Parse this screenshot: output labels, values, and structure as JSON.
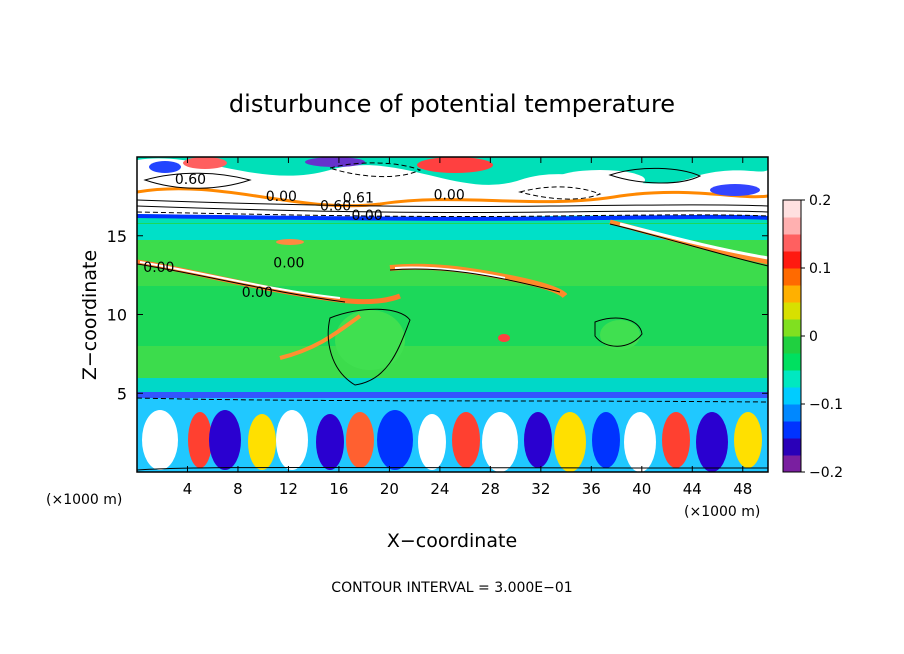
{
  "chart_data": {
    "type": "heatmap",
    "title": "disturbunce of potential temperature",
    "xlabel": "X−coordinate",
    "ylabel": "Z−coordinate",
    "x_unit": "(×1000 m)",
    "x_unit_right": "(×1000 m)",
    "xlim": [
      0,
      50
    ],
    "ylim": [
      0,
      20
    ],
    "x_ticks": [
      4,
      8,
      12,
      16,
      20,
      24,
      28,
      32,
      36,
      40,
      44,
      48
    ],
    "y_ticks": [
      5,
      10,
      15
    ],
    "colorbar": {
      "range": [
        -0.2,
        0.2
      ],
      "ticks": [
        {
          "value": 0.2,
          "label": "0.2"
        },
        {
          "value": 0.1,
          "label": "0.1"
        },
        {
          "value": 0.0,
          "label": "0"
        },
        {
          "value": -0.1,
          "label": "−0.1"
        },
        {
          "value": -0.2,
          "label": "−0.2"
        }
      ],
      "colors": [
        "#7a1fa0",
        "#2a00b8",
        "#0033ff",
        "#0088ff",
        "#00ccff",
        "#00e8c0",
        "#00e060",
        "#20d040",
        "#80e020",
        "#d8e000",
        "#ffb000",
        "#ff6a00",
        "#ff1a10",
        "#ff6060",
        "#ffb0b0",
        "#ffe0e0"
      ]
    },
    "contour_labels": [
      {
        "x": 3,
        "z": 18.3,
        "text": "0.60"
      },
      {
        "x": 10.2,
        "z": 17.2,
        "text": "0.00"
      },
      {
        "x": 14.5,
        "z": 16.6,
        "text": "0.60"
      },
      {
        "x": 16.3,
        "z": 17.1,
        "text": "0.61"
      },
      {
        "x": 17,
        "z": 16.0,
        "text": "0.00"
      },
      {
        "x": 23.5,
        "z": 17.3,
        "text": "0.00"
      },
      {
        "x": 0.5,
        "z": 12.7,
        "text": "0.00"
      },
      {
        "x": 10.8,
        "z": 13.0,
        "text": "0.00"
      },
      {
        "x": 8.3,
        "z": 11.1,
        "text": "0.00"
      }
    ],
    "contour_interval": "CONTOUR INTERVAL = 3.000E−01"
  }
}
